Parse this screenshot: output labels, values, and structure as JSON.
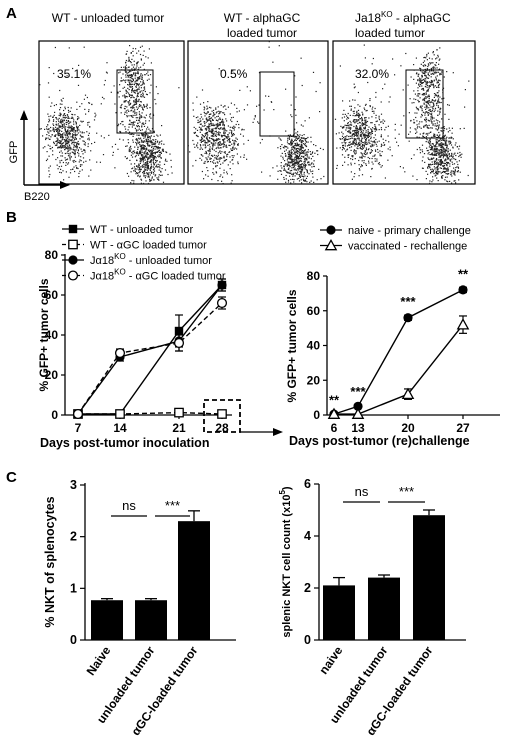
{
  "panel_letters": [
    "A",
    "B",
    "C"
  ],
  "panel_a": {
    "axis_y_label": "GFP",
    "axis_x_label": "B220",
    "plots": [
      {
        "title_lines": [
          "WT - unloaded tumor"
        ],
        "gate_percent": "35.1%",
        "gate_filled": true
      },
      {
        "title_lines": [
          "WT - alphaGC",
          "loaded  tumor"
        ],
        "gate_percent": "0.5%",
        "gate_filled": false
      },
      {
        "title_lines": [
          "Ja18",
          "KO",
          " - alphaGC",
          "loaded  tumor"
        ],
        "gate_percent": "32.0%",
        "gate_filled": true
      }
    ]
  },
  "chart_data": [
    {
      "type": "line",
      "panel": "B-left",
      "x": [
        7,
        14,
        21,
        28
      ],
      "xlabel": "Days post-tumor inoculation",
      "ylabel": "% GFP+ tumor cells",
      "ylim": [
        0,
        80
      ],
      "yticks": [
        0,
        20,
        40,
        60,
        80
      ],
      "legend": {
        "placement": "top",
        "entries": [
          {
            "text": "WT - unloaded tumor",
            "marker": "square-filled",
            "dash": false
          },
          {
            "text": "WT - αGC loaded tumor",
            "marker": "square-open",
            "dash": true
          },
          {
            "text_parts": [
              "Jα18",
              "KO",
              " - unloaded tumor"
            ],
            "marker": "circle-filled",
            "dash": false
          },
          {
            "text_parts": [
              "Jα18",
              "KO",
              " - αGC loaded tumor"
            ],
            "marker": "circle-open",
            "dash": true
          }
        ]
      },
      "series": [
        {
          "marker": "square-filled",
          "dash": false,
          "values": [
            0.5,
            0.5,
            42,
            65
          ],
          "err": [
            0.3,
            0.3,
            8,
            3
          ]
        },
        {
          "marker": "square-open",
          "dash": true,
          "values": [
            0.5,
            0.5,
            1.2,
            0.5
          ],
          "err": [
            0.2,
            0.2,
            0.5,
            0.2
          ]
        },
        {
          "marker": "circle-filled",
          "dash": false,
          "values": [
            0.5,
            29,
            37,
            65
          ],
          "err": [
            0.3,
            2,
            5,
            3
          ]
        },
        {
          "marker": "circle-open",
          "dash": true,
          "values": [
            0.5,
            31,
            36,
            56
          ],
          "err": [
            0.3,
            2,
            4,
            3
          ]
        }
      ],
      "highlight_x": 28
    },
    {
      "type": "line",
      "panel": "B-right",
      "x": [
        6,
        13,
        20,
        27
      ],
      "xlabel": "Days post-tumor (re)challenge",
      "ylabel": "% GFP+ tumor cells",
      "ylim": [
        0,
        80
      ],
      "yticks": [
        0,
        20,
        40,
        60,
        80
      ],
      "legend": {
        "placement": "top-left",
        "entries": [
          {
            "text": "naive - primary challenge",
            "marker": "circle-filled"
          },
          {
            "text": "vaccinated - rechallenge",
            "marker": "triangle-open"
          }
        ]
      },
      "series": [
        {
          "marker": "circle-filled",
          "values": [
            0.5,
            5,
            56,
            72
          ],
          "err": [
            0.3,
            0.8,
            1.5,
            1.5
          ]
        },
        {
          "marker": "triangle-open",
          "values": [
            0.5,
            0.5,
            12,
            52
          ],
          "err": [
            0.3,
            0.3,
            3,
            5
          ]
        }
      ],
      "annotations": [
        "**",
        "***",
        "***",
        "**"
      ]
    },
    {
      "type": "bar",
      "panel": "C-left",
      "categories": [
        "Naive",
        "unloaded tumor",
        "αGC-loaded tumor"
      ],
      "values": [
        0.77,
        0.77,
        2.3
      ],
      "err": [
        0.03,
        0.03,
        0.2
      ],
      "ylabel": "% NKT of splenocytes",
      "ylim": [
        0,
        3
      ],
      "yticks": [
        0,
        1,
        2,
        3
      ],
      "sig": [
        {
          "from": 0,
          "to": 1,
          "label": "ns"
        },
        {
          "from": 1,
          "to": 2,
          "label": "***"
        }
      ]
    },
    {
      "type": "bar",
      "panel": "C-right",
      "categories": [
        "naive",
        "unloaded tumor",
        "αGC-loaded tumor"
      ],
      "values": [
        2.1,
        2.4,
        4.8
      ],
      "err": [
        0.3,
        0.1,
        0.2
      ],
      "ylabel_parts": [
        "splenic NKT cell count  (x10",
        "5",
        ")"
      ],
      "ylim": [
        0,
        6
      ],
      "yticks": [
        0,
        2,
        4,
        6
      ],
      "sig": [
        {
          "from": 0,
          "to": 1,
          "label": "ns"
        },
        {
          "from": 1,
          "to": 2,
          "label": "***"
        }
      ]
    }
  ]
}
